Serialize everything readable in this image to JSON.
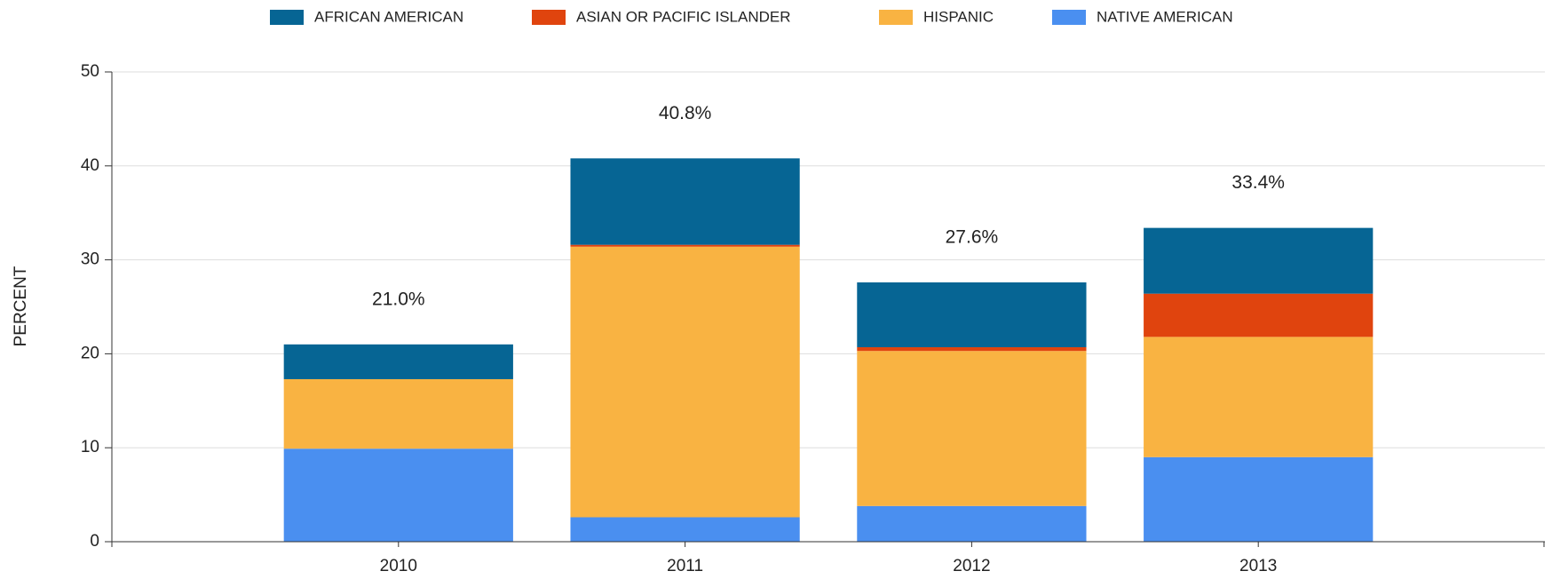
{
  "chart_data": {
    "type": "stacked_bar",
    "y_label": "PERCENT",
    "categories": [
      "2010",
      "2011",
      "2012",
      "2013"
    ],
    "series": [
      {
        "name": "NATIVE AMERICAN",
        "color": "#4a8ff0",
        "values": [
          9.9,
          2.6,
          3.8,
          9.0
        ]
      },
      {
        "name": "HISPANIC",
        "color": "#f9b342",
        "values": [
          7.4,
          28.8,
          16.5,
          12.8
        ]
      },
      {
        "name": "ASIAN OR PACIFIC ISLANDER",
        "color": "#e0440e",
        "values": [
          0,
          0.2,
          0.4,
          4.6
        ]
      },
      {
        "name": "AFRICAN AMERICAN",
        "color": "#066594",
        "values": [
          3.7,
          9.2,
          6.9,
          7.0
        ]
      }
    ],
    "totals": [
      21.0,
      40.8,
      27.6,
      33.4
    ],
    "total_labels": [
      "21.0%",
      "40.8%",
      "27.6%",
      "33.4%"
    ],
    "ylim": [
      0,
      50
    ],
    "yticks": [
      0,
      10,
      20,
      30,
      40,
      50
    ],
    "grid": true,
    "legend": "top"
  }
}
